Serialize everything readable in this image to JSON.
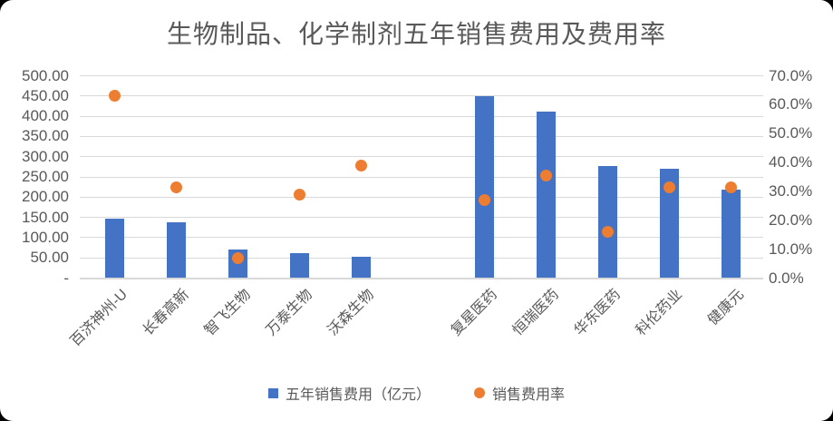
{
  "chart_data": {
    "type": "bar",
    "subtype": "combo-bar-scatter",
    "title": "生物制品、化学制剂五年销售费用及费用率",
    "categories": [
      "百济神州-U",
      "长春高新",
      "智飞生物",
      "万泰生物",
      "沃森生物",
      "",
      "复星医药",
      "恒瑞医药",
      "华东医药",
      "科伦药业",
      "健康元"
    ],
    "series": [
      {
        "name": "五年销售费用（亿元）",
        "type": "bar",
        "axis": "left",
        "color": "#4472C4",
        "values": [
          147,
          139,
          71,
          62,
          53,
          null,
          450,
          412,
          277,
          271,
          218
        ]
      },
      {
        "name": "销售费用率",
        "type": "scatter",
        "axis": "right",
        "color": "#ED7D31",
        "values": [
          63,
          31.5,
          7,
          29,
          39,
          null,
          27,
          35.5,
          16,
          31.5,
          31.5
        ]
      }
    ],
    "left_axis": {
      "min": 0,
      "max": 500,
      "tick_labels": [
        "500.00",
        "450.00",
        "400.00",
        "350.00",
        "300.00",
        "250.00",
        "200.00",
        "150.00",
        "100.00",
        "50.00",
        "-"
      ]
    },
    "right_axis": {
      "min": 0,
      "max": 70,
      "unit": "%",
      "tick_labels": [
        "70.0%",
        "60.0%",
        "50.0%",
        "40.0%",
        "30.0%",
        "20.0%",
        "10.0%",
        "0.0%"
      ]
    },
    "legend": {
      "position": "bottom",
      "entries": [
        "五年销售费用（亿元）",
        "销售费用率"
      ]
    },
    "grid": true,
    "colors": {
      "bar": "#4472C4",
      "dot": "#ED7D31",
      "gridline": "#D9D9D9",
      "text": "#595959",
      "background": "#FFFFFF"
    }
  }
}
